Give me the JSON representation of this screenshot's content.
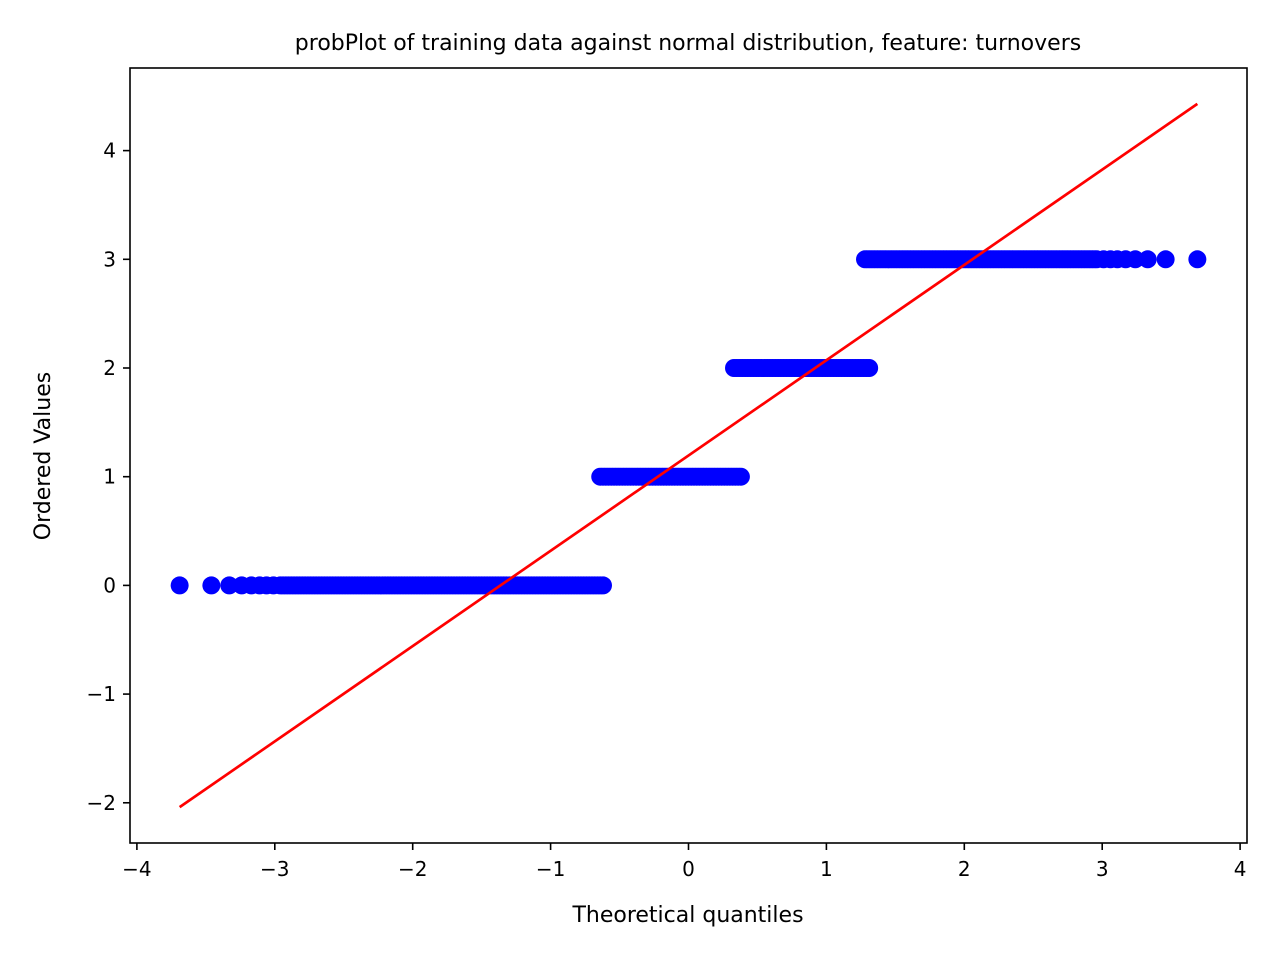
{
  "chart_data": {
    "type": "scatter",
    "title": "probPlot of training data against normal distribution, feature: turnovers",
    "xlabel": "Theoretical quantiles",
    "ylabel": "Ordered Values",
    "xlim": [
      -4.05,
      4.05
    ],
    "ylim": [
      -2.37,
      4.76
    ],
    "xticks": [
      -4,
      -3,
      -2,
      -1,
      0,
      1,
      2,
      3,
      4
    ],
    "xtick_labels": [
      "−4",
      "−3",
      "−2",
      "−1",
      "0",
      "1",
      "2",
      "3",
      "4"
    ],
    "yticks": [
      -2,
      -1,
      0,
      1,
      2,
      3,
      4
    ],
    "ytick_labels": [
      "−2",
      "−1",
      "0",
      "1",
      "2",
      "3",
      "4"
    ],
    "grid": false,
    "series": [
      {
        "kind": "points",
        "color": "#0000ff",
        "groups": [
          {
            "y": 0,
            "x_min": -3.69,
            "x_max": -0.62,
            "outliers": [
              -3.69,
              -3.46,
              -3.33,
              -3.24,
              -3.17,
              -3.11,
              -3.06,
              -3.01
            ]
          },
          {
            "y": 1,
            "x_min": -0.64,
            "x_max": 0.38,
            "outliers": []
          },
          {
            "y": 2,
            "x_min": 0.33,
            "x_max": 1.32,
            "outliers": []
          },
          {
            "y": 3,
            "x_min": 1.28,
            "x_max": 3.69,
            "outliers": [
              3.69,
              3.46,
              3.33,
              3.24,
              3.17,
              3.11,
              3.06,
              3.01
            ]
          }
        ]
      },
      {
        "kind": "fit-line",
        "color": "#ff0000",
        "x": [
          -3.69,
          3.69
        ],
        "y": [
          -2.04,
          4.43
        ]
      }
    ]
  }
}
